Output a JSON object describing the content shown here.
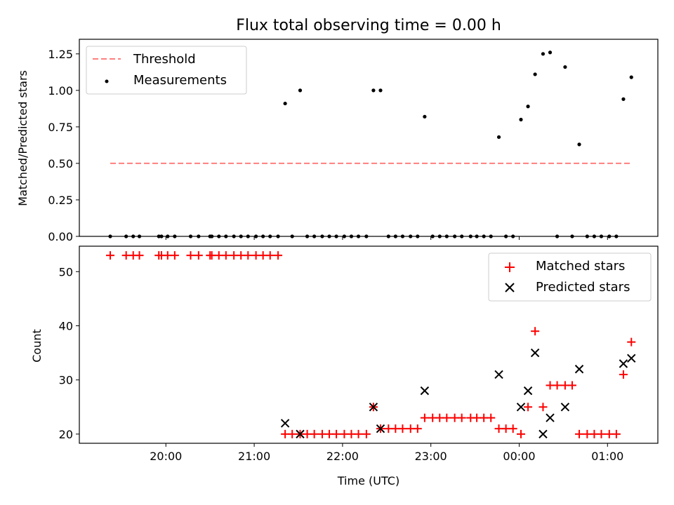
{
  "chart_data": [
    {
      "type": "scatter",
      "title": "Flux total observing time = 0.00 h",
      "xlabel": "",
      "ylabel": "Matched/Predicted stars",
      "ylim": [
        0.0,
        1.35
      ],
      "yticks": [
        0.0,
        0.25,
        0.5,
        0.75,
        1.0,
        1.25
      ],
      "ytick_labels": [
        "0.00",
        "0.25",
        "0.50",
        "0.75",
        "1.00",
        "1.25"
      ],
      "legend": {
        "placement": "top-left",
        "entries": [
          "Threshold",
          "Measurements"
        ]
      },
      "threshold": {
        "name": "Threshold",
        "value": 0.5,
        "x_start": 19.37,
        "x_end": 25.27,
        "color": "#ff7f7f"
      },
      "series": [
        {
          "name": "Measurements",
          "color": "#000000",
          "points": [
            {
              "x": 19.37,
              "y": 0.0
            },
            {
              "x": 19.55,
              "y": 0.0
            },
            {
              "x": 19.63,
              "y": 0.0
            },
            {
              "x": 19.7,
              "y": 0.0
            },
            {
              "x": 19.92,
              "y": 0.0
            },
            {
              "x": 19.95,
              "y": 0.0
            },
            {
              "x": 20.02,
              "y": 0.0
            },
            {
              "x": 20.1,
              "y": 0.0
            },
            {
              "x": 20.28,
              "y": 0.0
            },
            {
              "x": 20.37,
              "y": 0.0
            },
            {
              "x": 20.5,
              "y": 0.0
            },
            {
              "x": 20.52,
              "y": 0.0
            },
            {
              "x": 20.6,
              "y": 0.0
            },
            {
              "x": 20.68,
              "y": 0.0
            },
            {
              "x": 20.77,
              "y": 0.0
            },
            {
              "x": 20.85,
              "y": 0.0
            },
            {
              "x": 20.93,
              "y": 0.0
            },
            {
              "x": 21.02,
              "y": 0.0
            },
            {
              "x": 21.1,
              "y": 0.0
            },
            {
              "x": 21.18,
              "y": 0.0
            },
            {
              "x": 21.27,
              "y": 0.0
            },
            {
              "x": 21.35,
              "y": 0.91
            },
            {
              "x": 21.43,
              "y": 0.0
            },
            {
              "x": 21.52,
              "y": 1.0
            },
            {
              "x": 21.6,
              "y": 0.0
            },
            {
              "x": 21.68,
              "y": 0.0
            },
            {
              "x": 21.77,
              "y": 0.0
            },
            {
              "x": 21.85,
              "y": 0.0
            },
            {
              "x": 21.93,
              "y": 0.0
            },
            {
              "x": 22.02,
              "y": 0.0
            },
            {
              "x": 22.1,
              "y": 0.0
            },
            {
              "x": 22.18,
              "y": 0.0
            },
            {
              "x": 22.27,
              "y": 0.0
            },
            {
              "x": 22.35,
              "y": 1.0
            },
            {
              "x": 22.43,
              "y": 1.0
            },
            {
              "x": 22.52,
              "y": 0.0
            },
            {
              "x": 22.6,
              "y": 0.0
            },
            {
              "x": 22.68,
              "y": 0.0
            },
            {
              "x": 22.77,
              "y": 0.0
            },
            {
              "x": 22.85,
              "y": 0.0
            },
            {
              "x": 22.93,
              "y": 0.82
            },
            {
              "x": 23.02,
              "y": 0.0
            },
            {
              "x": 23.1,
              "y": 0.0
            },
            {
              "x": 23.18,
              "y": 0.0
            },
            {
              "x": 23.27,
              "y": 0.0
            },
            {
              "x": 23.35,
              "y": 0.0
            },
            {
              "x": 23.45,
              "y": 0.0
            },
            {
              "x": 23.52,
              "y": 0.0
            },
            {
              "x": 23.6,
              "y": 0.0
            },
            {
              "x": 23.68,
              "y": 0.0
            },
            {
              "x": 23.77,
              "y": 0.68
            },
            {
              "x": 23.85,
              "y": 0.0
            },
            {
              "x": 23.93,
              "y": 0.0
            },
            {
              "x": 24.02,
              "y": 0.8
            },
            {
              "x": 24.1,
              "y": 0.89
            },
            {
              "x": 24.18,
              "y": 1.11
            },
            {
              "x": 24.27,
              "y": 1.25
            },
            {
              "x": 24.35,
              "y": 1.26
            },
            {
              "x": 24.43,
              "y": 0.0
            },
            {
              "x": 24.52,
              "y": 1.16
            },
            {
              "x": 24.6,
              "y": 0.0
            },
            {
              "x": 24.68,
              "y": 0.63
            },
            {
              "x": 24.77,
              "y": 0.0
            },
            {
              "x": 24.85,
              "y": 0.0
            },
            {
              "x": 24.93,
              "y": 0.0
            },
            {
              "x": 25.02,
              "y": 0.0
            },
            {
              "x": 25.1,
              "y": 0.0
            },
            {
              "x": 25.18,
              "y": 0.94
            },
            {
              "x": 25.27,
              "y": 1.09
            }
          ]
        }
      ]
    },
    {
      "type": "scatter",
      "title": "",
      "xlabel": "Time (UTC)",
      "ylabel": "Count",
      "ylim": [
        18.3,
        54.7
      ],
      "xlim": [
        19.02,
        25.57
      ],
      "xticks": [
        20,
        21,
        22,
        23,
        24,
        25
      ],
      "xtick_labels": [
        "20:00",
        "21:00",
        "22:00",
        "23:00",
        "00:00",
        "01:00"
      ],
      "yticks": [
        20,
        30,
        40,
        50
      ],
      "ytick_labels": [
        "20",
        "30",
        "40",
        "50"
      ],
      "legend": {
        "placement": "top-right",
        "entries": [
          "Matched stars",
          "Predicted stars"
        ]
      },
      "series": [
        {
          "name": "Matched stars",
          "marker": "+",
          "color": "#ff0000",
          "points": [
            {
              "x": 19.37,
              "y": 53
            },
            {
              "x": 19.55,
              "y": 53
            },
            {
              "x": 19.63,
              "y": 53
            },
            {
              "x": 19.7,
              "y": 53
            },
            {
              "x": 19.92,
              "y": 53
            },
            {
              "x": 19.95,
              "y": 53
            },
            {
              "x": 20.02,
              "y": 53
            },
            {
              "x": 20.1,
              "y": 53
            },
            {
              "x": 20.28,
              "y": 53
            },
            {
              "x": 20.37,
              "y": 53
            },
            {
              "x": 20.5,
              "y": 53
            },
            {
              "x": 20.52,
              "y": 53
            },
            {
              "x": 20.6,
              "y": 53
            },
            {
              "x": 20.68,
              "y": 53
            },
            {
              "x": 20.77,
              "y": 53
            },
            {
              "x": 20.85,
              "y": 53
            },
            {
              "x": 20.93,
              "y": 53
            },
            {
              "x": 21.02,
              "y": 53
            },
            {
              "x": 21.1,
              "y": 53
            },
            {
              "x": 21.18,
              "y": 53
            },
            {
              "x": 21.27,
              "y": 53
            },
            {
              "x": 21.35,
              "y": 20
            },
            {
              "x": 21.43,
              "y": 20
            },
            {
              "x": 21.52,
              "y": 20
            },
            {
              "x": 21.6,
              "y": 20
            },
            {
              "x": 21.68,
              "y": 20
            },
            {
              "x": 21.77,
              "y": 20
            },
            {
              "x": 21.85,
              "y": 20
            },
            {
              "x": 21.93,
              "y": 20
            },
            {
              "x": 22.02,
              "y": 20
            },
            {
              "x": 22.1,
              "y": 20
            },
            {
              "x": 22.18,
              "y": 20
            },
            {
              "x": 22.27,
              "y": 20
            },
            {
              "x": 22.35,
              "y": 25
            },
            {
              "x": 22.43,
              "y": 21
            },
            {
              "x": 22.52,
              "y": 21
            },
            {
              "x": 22.6,
              "y": 21
            },
            {
              "x": 22.68,
              "y": 21
            },
            {
              "x": 22.77,
              "y": 21
            },
            {
              "x": 22.85,
              "y": 21
            },
            {
              "x": 22.93,
              "y": 23
            },
            {
              "x": 23.02,
              "y": 23
            },
            {
              "x": 23.1,
              "y": 23
            },
            {
              "x": 23.18,
              "y": 23
            },
            {
              "x": 23.27,
              "y": 23
            },
            {
              "x": 23.35,
              "y": 23
            },
            {
              "x": 23.45,
              "y": 23
            },
            {
              "x": 23.52,
              "y": 23
            },
            {
              "x": 23.6,
              "y": 23
            },
            {
              "x": 23.68,
              "y": 23
            },
            {
              "x": 23.77,
              "y": 21
            },
            {
              "x": 23.85,
              "y": 21
            },
            {
              "x": 23.93,
              "y": 21
            },
            {
              "x": 24.02,
              "y": 20
            },
            {
              "x": 24.1,
              "y": 25
            },
            {
              "x": 24.18,
              "y": 39
            },
            {
              "x": 24.27,
              "y": 25
            },
            {
              "x": 24.35,
              "y": 29
            },
            {
              "x": 24.43,
              "y": 29
            },
            {
              "x": 24.52,
              "y": 29
            },
            {
              "x": 24.6,
              "y": 29
            },
            {
              "x": 24.68,
              "y": 20
            },
            {
              "x": 24.77,
              "y": 20
            },
            {
              "x": 24.85,
              "y": 20
            },
            {
              "x": 24.93,
              "y": 20
            },
            {
              "x": 25.02,
              "y": 20
            },
            {
              "x": 25.1,
              "y": 20
            },
            {
              "x": 25.18,
              "y": 31
            },
            {
              "x": 25.27,
              "y": 37
            }
          ]
        },
        {
          "name": "Predicted stars",
          "marker": "x",
          "color": "#000000",
          "points": [
            {
              "x": 21.35,
              "y": 22
            },
            {
              "x": 21.52,
              "y": 20
            },
            {
              "x": 22.35,
              "y": 25
            },
            {
              "x": 22.43,
              "y": 21
            },
            {
              "x": 22.93,
              "y": 28
            },
            {
              "x": 23.77,
              "y": 31
            },
            {
              "x": 24.02,
              "y": 25
            },
            {
              "x": 24.1,
              "y": 28
            },
            {
              "x": 24.18,
              "y": 35
            },
            {
              "x": 24.27,
              "y": 20
            },
            {
              "x": 24.35,
              "y": 23
            },
            {
              "x": 24.52,
              "y": 25
            },
            {
              "x": 24.68,
              "y": 32
            },
            {
              "x": 25.18,
              "y": 33
            },
            {
              "x": 25.27,
              "y": 34
            }
          ]
        }
      ]
    }
  ]
}
